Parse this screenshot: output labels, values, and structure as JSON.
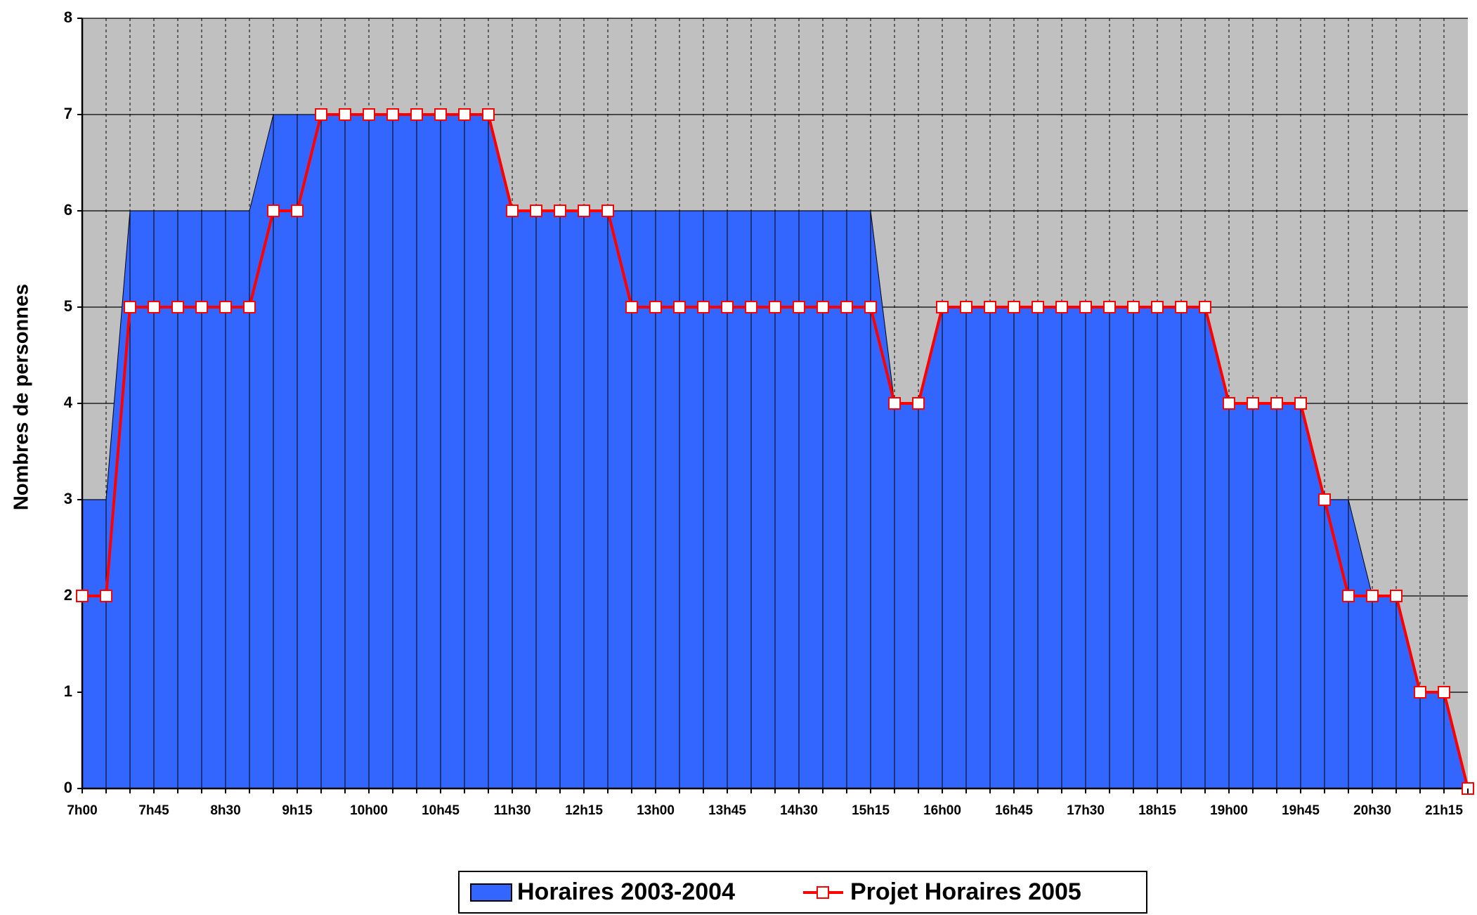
{
  "chart_data": {
    "type": "area_line",
    "y_label": "Nombres de personnes",
    "categories": [
      "7h00",
      null,
      null,
      "7h45",
      null,
      null,
      "8h30",
      null,
      null,
      "9h15",
      null,
      null,
      "10h00",
      null,
      null,
      "10h45",
      null,
      null,
      "11h30",
      null,
      null,
      "12h15",
      null,
      null,
      "13h00",
      null,
      null,
      "13h45",
      null,
      null,
      "14h30",
      null,
      null,
      "15h15",
      null,
      null,
      "16h00",
      null,
      null,
      "16h45",
      null,
      null,
      "17h30",
      null,
      null,
      "18h15",
      null,
      null,
      "19h00",
      null,
      null,
      "19h45",
      null,
      null,
      "20h30",
      null,
      null,
      "21h15",
      null
    ],
    "series": [
      {
        "name": "Horaires 2003-2004",
        "color": "#3366ff",
        "kind": "area",
        "values": [
          3,
          3,
          6,
          6,
          6,
          6,
          6,
          6,
          7,
          7,
          7,
          7,
          7,
          7,
          7,
          7,
          7,
          7,
          6,
          6,
          6,
          6,
          6,
          6,
          6,
          6,
          6,
          6,
          6,
          6,
          6,
          6,
          6,
          6,
          4,
          4,
          5,
          5,
          5,
          5,
          5,
          5,
          5,
          5,
          5,
          5,
          5,
          5,
          4,
          4,
          4,
          4,
          3,
          3,
          2,
          2,
          1,
          1,
          0
        ]
      },
      {
        "name": "Projet Horaires 2005",
        "color": "#ff0000",
        "kind": "line",
        "values": [
          2,
          2,
          5,
          5,
          5,
          5,
          5,
          5,
          6,
          6,
          7,
          7,
          7,
          7,
          7,
          7,
          7,
          7,
          6,
          6,
          6,
          6,
          6,
          5,
          5,
          5,
          5,
          5,
          5,
          5,
          5,
          5,
          5,
          5,
          4,
          4,
          5,
          5,
          5,
          5,
          5,
          5,
          5,
          5,
          5,
          5,
          5,
          5,
          4,
          4,
          4,
          4,
          3,
          2,
          2,
          2,
          1,
          1,
          0
        ]
      }
    ],
    "ylim": [
      0,
      8
    ],
    "yticks": [
      0,
      1,
      2,
      3,
      4,
      5,
      6,
      7,
      8
    ],
    "plot_background": "#c0c0c0",
    "grid": true,
    "legend": "bottom"
  }
}
